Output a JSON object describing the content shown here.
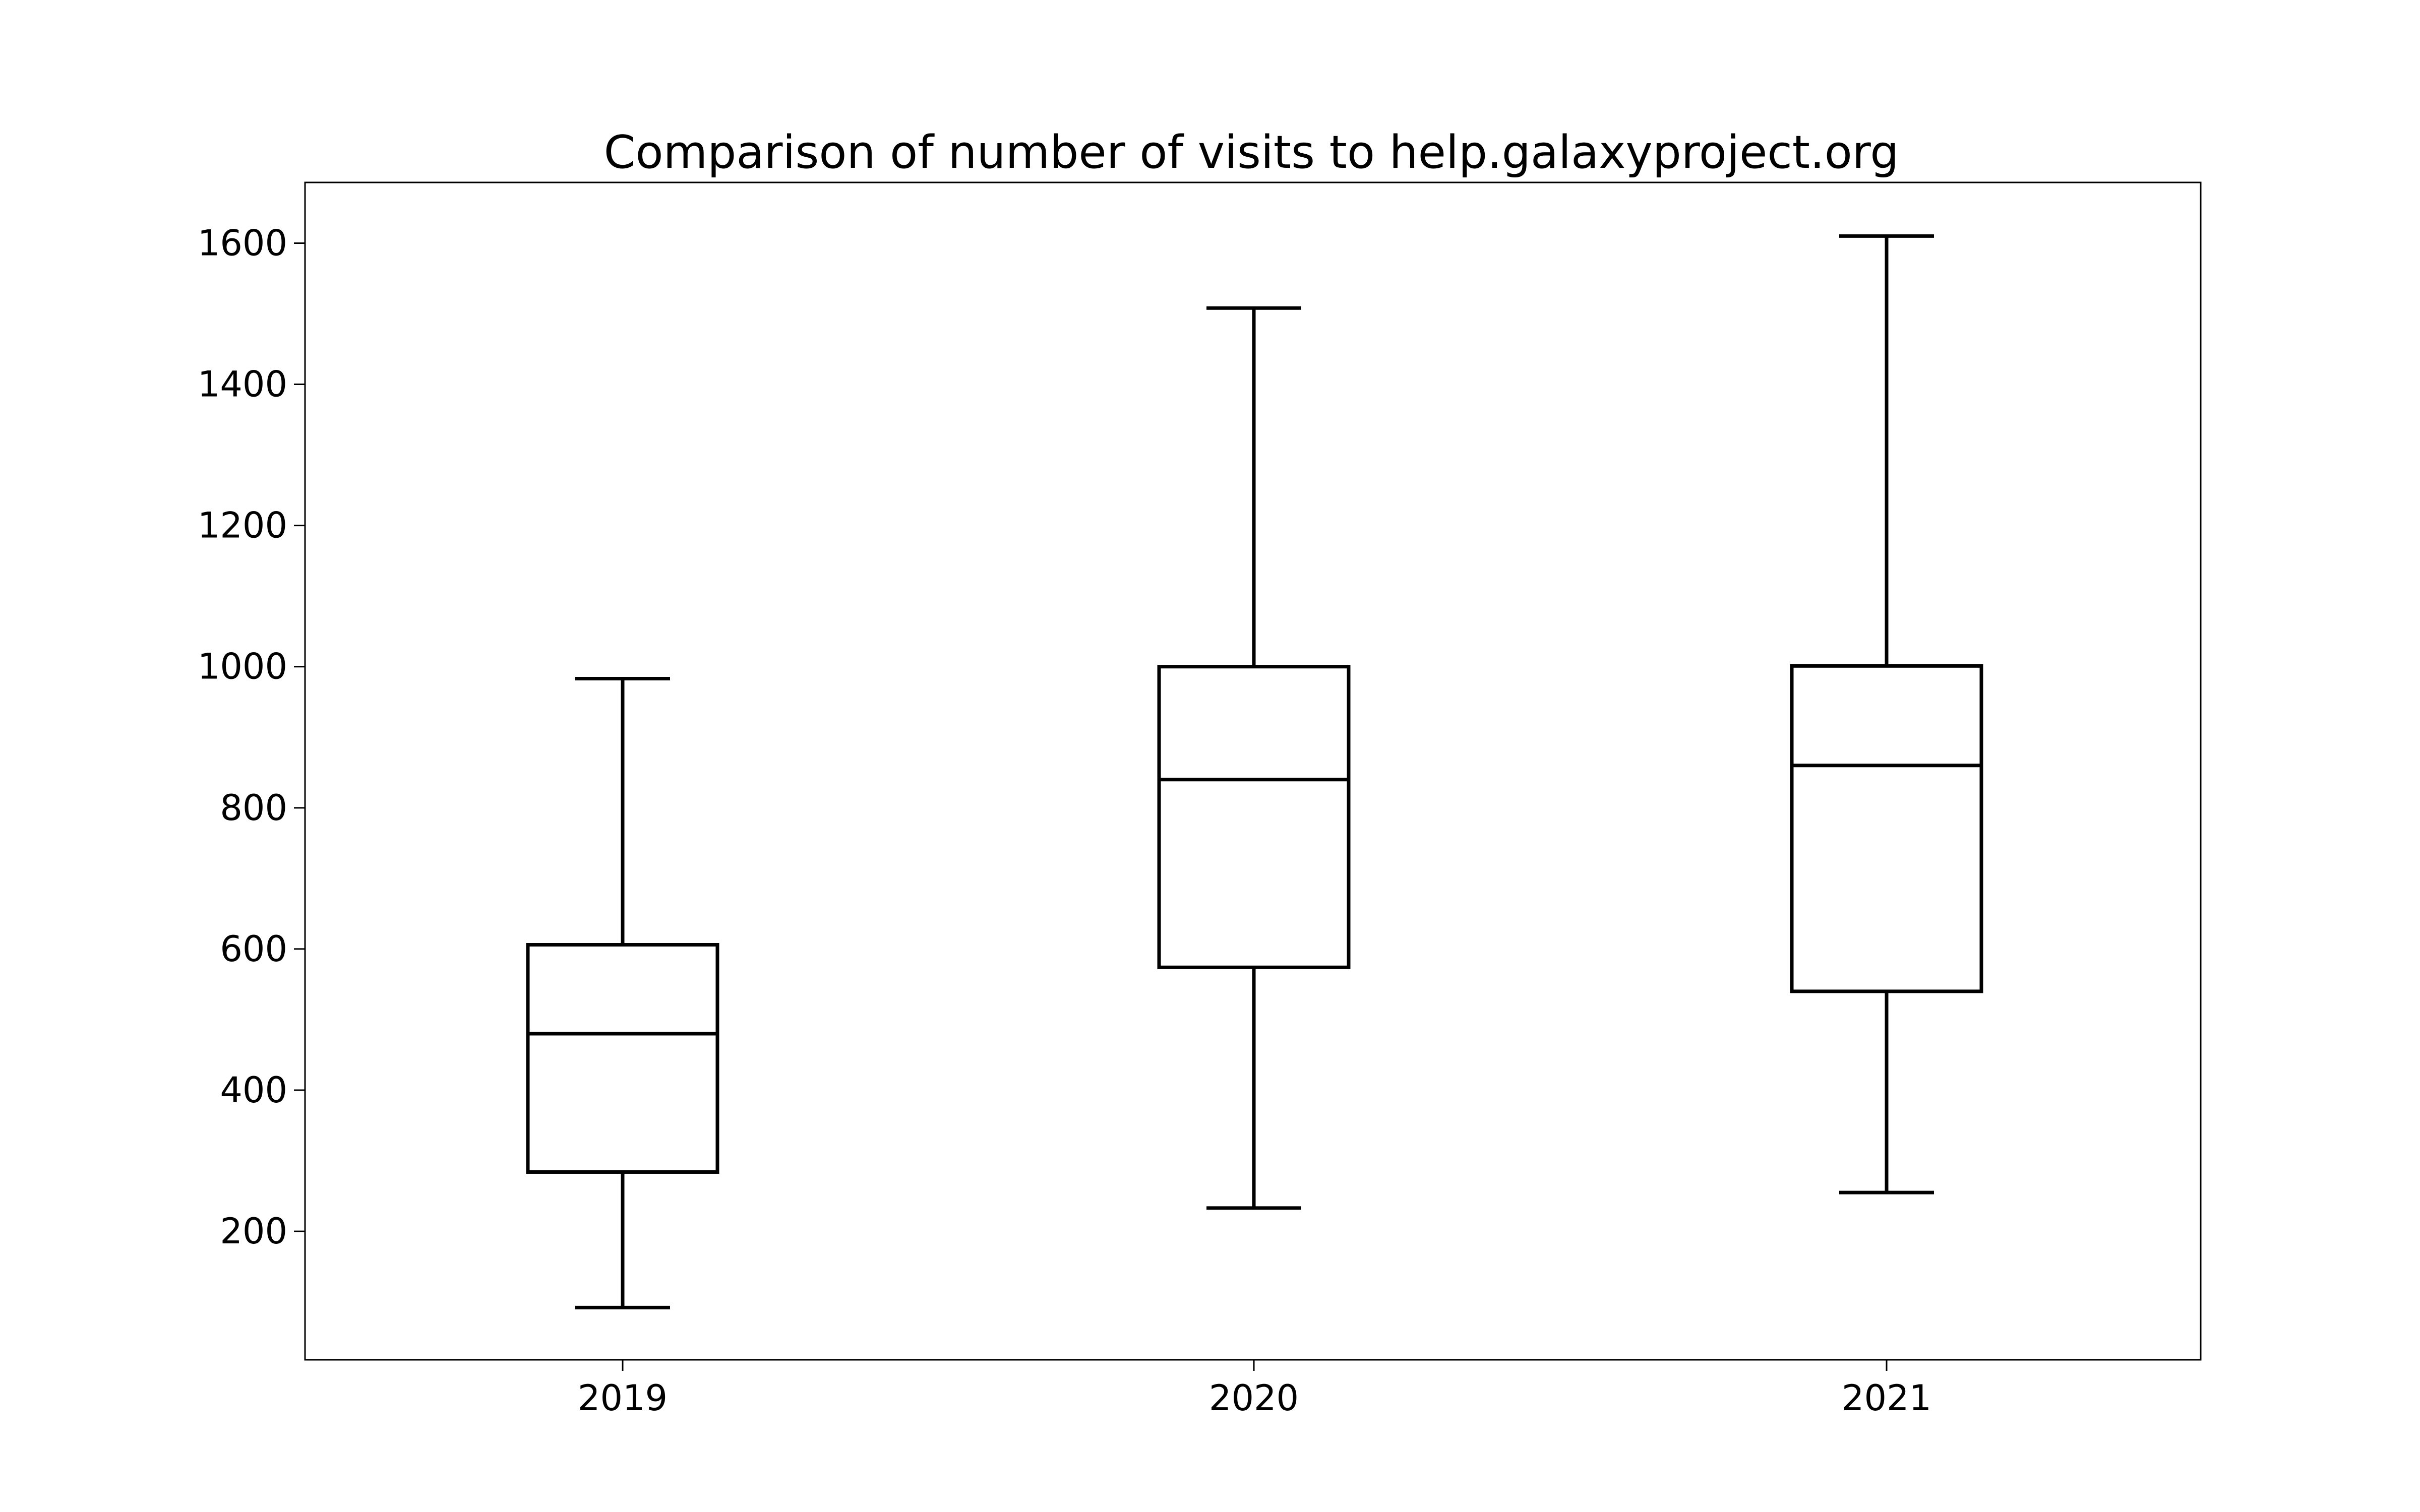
{
  "chart_data": {
    "type": "box",
    "title": "Comparison of number of visits to help.galaxyproject.org",
    "xlabel": "",
    "ylabel": "",
    "categories": [
      "2019",
      "2020",
      "2021"
    ],
    "boxes": [
      {
        "category": "2019",
        "whisker_low": 92,
        "q1": 284,
        "median": 480,
        "q3": 606,
        "whisker_high": 983
      },
      {
        "category": "2020",
        "whisker_low": 233,
        "q1": 574,
        "median": 840,
        "q3": 1000,
        "whisker_high": 1508
      },
      {
        "category": "2021",
        "whisker_low": 255,
        "q1": 540,
        "median": 860,
        "q3": 1001,
        "whisker_high": 1610
      }
    ],
    "y_ticks": [
      200,
      400,
      600,
      800,
      1000,
      1200,
      1400,
      1600
    ],
    "ylim": [
      18,
      1686
    ],
    "grid": false,
    "legend": "none",
    "line_color": "#000000",
    "box_fill": "#ffffff"
  }
}
